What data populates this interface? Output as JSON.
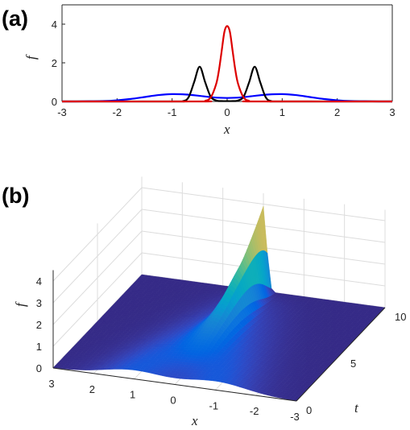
{
  "chart_data": [
    {
      "panel": "(a)",
      "type": "line",
      "title": "",
      "xlabel": "x",
      "ylabel": "f",
      "xlim": [
        -3,
        3
      ],
      "ylim": [
        0,
        5
      ],
      "xticks": [
        "-3",
        "-2",
        "-1",
        "0",
        "1",
        "2",
        "3"
      ],
      "yticks": [
        "0",
        "2",
        "4"
      ],
      "grid": false,
      "series": [
        {
          "color": "#0000ff",
          "x": [
            -3,
            -2.75,
            -2.5,
            -2.25,
            -2,
            -1.75,
            -1.5,
            -1.25,
            -1,
            -0.75,
            -0.5,
            -0.25,
            0,
            0.25,
            0.5,
            0.75,
            1,
            1.25,
            1.5,
            1.75,
            2,
            2.25,
            2.5,
            2.75,
            3
          ],
          "values": [
            0.0,
            0.0,
            0.01,
            0.02,
            0.06,
            0.13,
            0.23,
            0.33,
            0.38,
            0.36,
            0.29,
            0.21,
            0.18,
            0.21,
            0.29,
            0.36,
            0.38,
            0.33,
            0.23,
            0.13,
            0.06,
            0.02,
            0.01,
            0.0,
            0.0
          ]
        },
        {
          "color": "#000000",
          "x": [
            -3,
            -1,
            -0.8,
            -0.7,
            -0.6,
            -0.5,
            -0.4,
            -0.3,
            -0.2,
            -0.1,
            0,
            0.1,
            0.2,
            0.3,
            0.4,
            0.5,
            0.6,
            0.7,
            0.8,
            1,
            3
          ],
          "values": [
            0,
            0,
            0.02,
            0.22,
            1.0,
            1.8,
            1.0,
            0.25,
            0.05,
            0.02,
            0.02,
            0.02,
            0.05,
            0.25,
            1.0,
            1.8,
            1.0,
            0.22,
            0.02,
            0,
            0
          ]
        },
        {
          "color": "#dd0000",
          "x": [
            -3,
            -0.5,
            -0.4,
            -0.3,
            -0.2,
            -0.15,
            -0.1,
            -0.05,
            0,
            0.05,
            0.1,
            0.15,
            0.2,
            0.3,
            0.4,
            0.5,
            3
          ],
          "values": [
            0,
            0,
            0.03,
            0.2,
            0.9,
            1.6,
            2.6,
            3.6,
            3.9,
            3.6,
            2.6,
            1.6,
            0.9,
            0.2,
            0.03,
            0,
            0
          ]
        }
      ]
    },
    {
      "panel": "(b)",
      "type": "surface",
      "title": "",
      "xlabel": "x",
      "ylabel": "t",
      "zlabel": "f",
      "xlim": [
        -3,
        3
      ],
      "ylim": [
        0,
        10
      ],
      "zlim": [
        0,
        4.5
      ],
      "xticks": [
        "3",
        "2",
        "1",
        "0",
        "-1",
        "-2",
        "-3"
      ],
      "yticks": [
        "0",
        "5",
        "10"
      ],
      "zticks": [
        "0",
        "1",
        "2",
        "3",
        "4"
      ],
      "colormap": "parula",
      "peak": {
        "x": 0,
        "t": 10,
        "f": 3.9
      }
    }
  ]
}
